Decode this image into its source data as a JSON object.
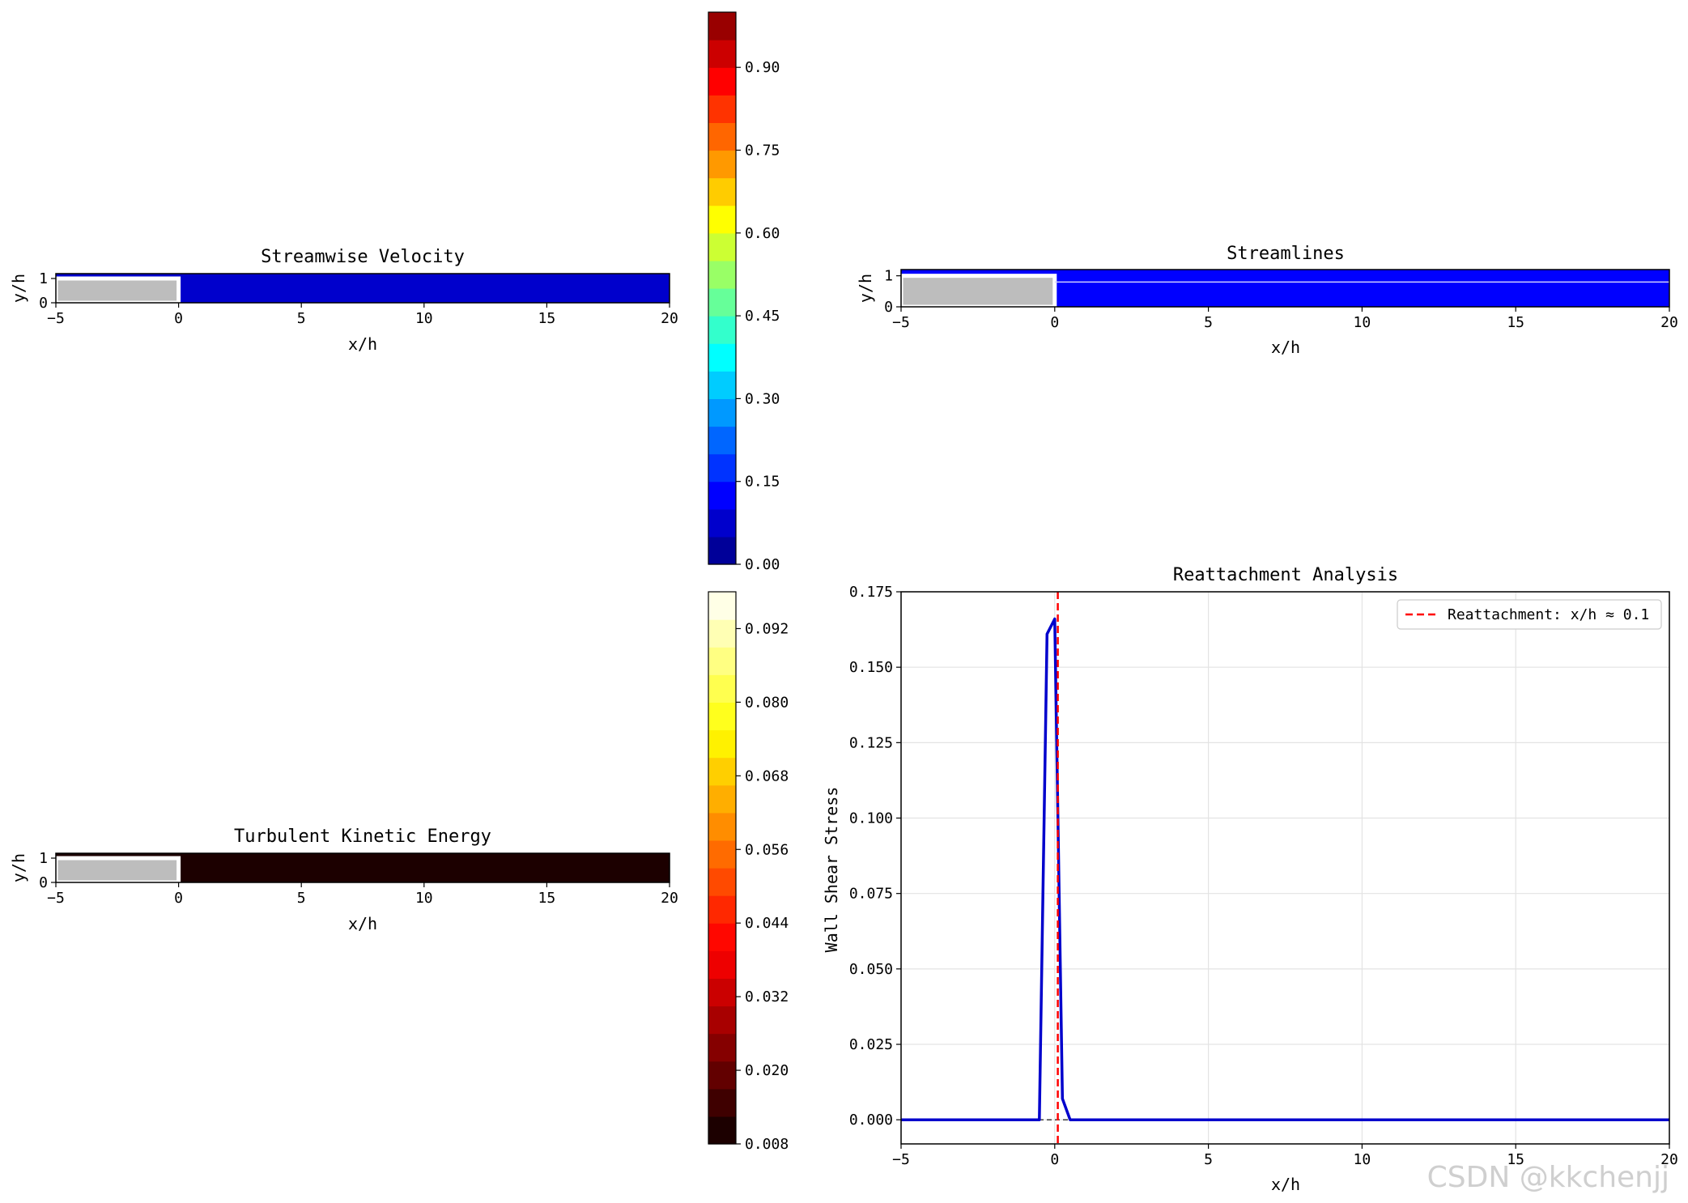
{
  "watermark": "CSDN @kkchenjj",
  "chart_data": [
    {
      "type": "heatmap",
      "title": "Streamwise Velocity",
      "xlabel": "x/h",
      "ylabel": "y/h",
      "xlim": [
        -5,
        20
      ],
      "ylim": [
        0,
        1.2
      ],
      "xticks": [
        -5,
        0,
        5,
        10,
        15,
        20
      ],
      "yticks": [
        0,
        1
      ],
      "step": {
        "x": [
          -5,
          0
        ],
        "y": [
          0,
          1
        ]
      },
      "field_value": 0.05,
      "colorbar": {
        "colormap": "jet",
        "range": [
          0.0,
          1.0
        ],
        "levels": 20,
        "ticks": [
          0.0,
          0.15,
          0.3,
          0.45,
          0.6,
          0.75,
          0.9
        ],
        "tick_labels": [
          "0.00",
          "0.15",
          "0.30",
          "0.45",
          "0.60",
          "0.75",
          "0.90"
        ]
      }
    },
    {
      "type": "heatmap",
      "title": "Streamlines",
      "xlabel": "x/h",
      "ylabel": "y/h",
      "xlim": [
        -5,
        20
      ],
      "ylim": [
        0,
        1.2
      ],
      "xticks": [
        -5,
        0,
        5,
        10,
        15,
        20
      ],
      "yticks": [
        0,
        1
      ],
      "step": {
        "x": [
          -5,
          0
        ],
        "y": [
          0,
          1
        ]
      },
      "streamline_y": 0.8,
      "field_color": "#0000ff"
    },
    {
      "type": "heatmap",
      "title": "Turbulent Kinetic Energy",
      "xlabel": "x/h",
      "ylabel": "y/h",
      "xlim": [
        -5,
        20
      ],
      "ylim": [
        0,
        1.2
      ],
      "xticks": [
        -5,
        0,
        5,
        10,
        15,
        20
      ],
      "yticks": [
        0,
        1
      ],
      "step": {
        "x": [
          -5,
          0
        ],
        "y": [
          0,
          1
        ]
      },
      "field_value": 0.008,
      "colorbar": {
        "colormap": "hot",
        "range": [
          0.008,
          0.098
        ],
        "levels": 20,
        "ticks": [
          0.008,
          0.02,
          0.032,
          0.044,
          0.056,
          0.068,
          0.08,
          0.092
        ],
        "tick_labels": [
          "0.008",
          "0.020",
          "0.032",
          "0.044",
          "0.056",
          "0.068",
          "0.080",
          "0.092"
        ]
      }
    },
    {
      "type": "line",
      "title": "Reattachment Analysis",
      "xlabel": "x/h",
      "ylabel": "Wall Shear Stress",
      "xlim": [
        -5,
        20
      ],
      "ylim": [
        -0.008,
        0.175
      ],
      "xticks": [
        -5,
        0,
        5,
        10,
        15,
        20
      ],
      "yticks": [
        0.0,
        0.025,
        0.05,
        0.075,
        0.1,
        0.125,
        0.15,
        0.175
      ],
      "ytick_labels": [
        "0.000",
        "0.025",
        "0.050",
        "0.075",
        "0.100",
        "0.125",
        "0.150",
        "0.175"
      ],
      "grid": true,
      "legend_position": "top-right",
      "series": [
        {
          "color": "#0000cc",
          "x": [
            -5,
            -0.5,
            -0.25,
            0.0,
            0.25,
            0.5,
            20
          ],
          "y": [
            0.0,
            0.0,
            0.161,
            0.166,
            0.007,
            0.0,
            0.0
          ]
        }
      ],
      "zero_line": {
        "y": 0,
        "color": "#000000",
        "style": "dashed"
      },
      "reattachment": {
        "x": 0.1,
        "color": "#ff0000",
        "label": "Reattachment: x/h ≈ 0.1"
      }
    }
  ]
}
